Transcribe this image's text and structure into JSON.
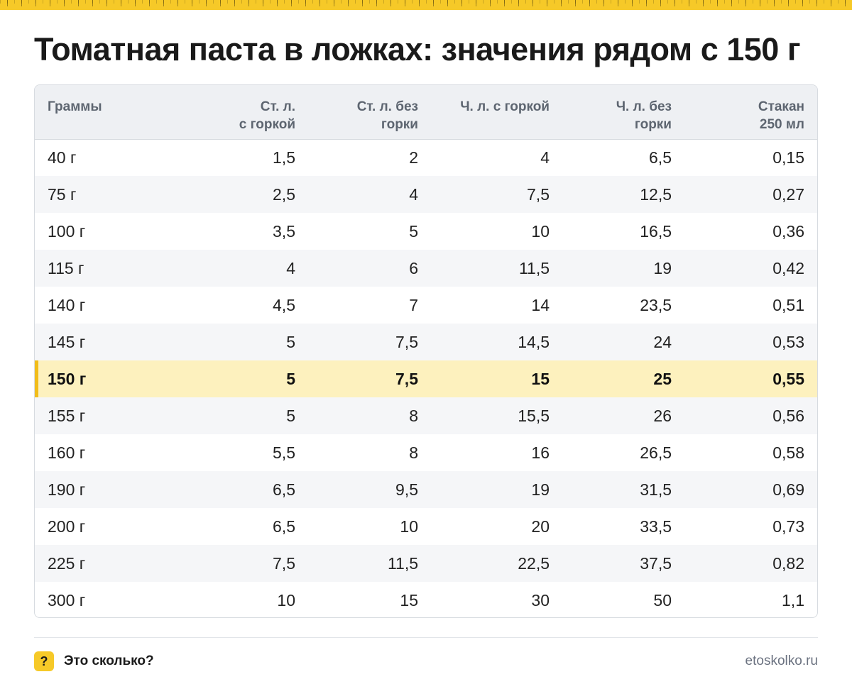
{
  "title": "Томатная паста в ложках: значения рядом с 150 г",
  "table": {
    "headers": [
      "Граммы",
      "Ст. л.\nс горкой",
      "Ст. л. без\nгорки",
      "Ч. л. с горкой",
      "Ч. л. без\nгорки",
      "Стакан\n250 мл"
    ],
    "rows": [
      [
        "40 г",
        "1,5",
        "2",
        "4",
        "6,5",
        "0,15"
      ],
      [
        "75 г",
        "2,5",
        "4",
        "7,5",
        "12,5",
        "0,27"
      ],
      [
        "100 г",
        "3,5",
        "5",
        "10",
        "16,5",
        "0,36"
      ],
      [
        "115 г",
        "4",
        "6",
        "11,5",
        "19",
        "0,42"
      ],
      [
        "140 г",
        "4,5",
        "7",
        "14",
        "23,5",
        "0,51"
      ],
      [
        "145 г",
        "5",
        "7,5",
        "14,5",
        "24",
        "0,53"
      ],
      [
        "150 г",
        "5",
        "7,5",
        "15",
        "25",
        "0,55"
      ],
      [
        "155 г",
        "5",
        "8",
        "15,5",
        "26",
        "0,56"
      ],
      [
        "160 г",
        "5,5",
        "8",
        "16",
        "26,5",
        "0,58"
      ],
      [
        "190 г",
        "6,5",
        "9,5",
        "19",
        "31,5",
        "0,69"
      ],
      [
        "200 г",
        "6,5",
        "10",
        "20",
        "33,5",
        "0,73"
      ],
      [
        "225 г",
        "7,5",
        "11,5",
        "22,5",
        "37,5",
        "0,82"
      ],
      [
        "300 г",
        "10",
        "15",
        "30",
        "50",
        "1,1"
      ]
    ],
    "highlight_row": 6
  },
  "footer": {
    "badge": "?",
    "brand": "Это сколько?",
    "site": "etoskolko.ru"
  },
  "colors": {
    "accent": "#f6c928",
    "highlight_bg": "#fdf1be",
    "header_bg": "#eef0f3"
  }
}
